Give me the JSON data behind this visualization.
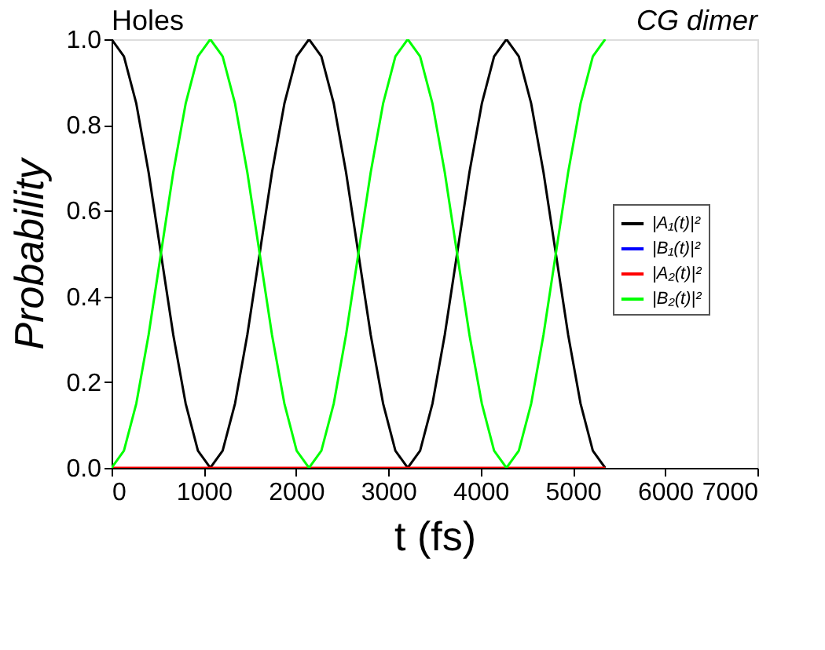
{
  "chart_data": {
    "type": "line",
    "xlabel": "t (fs)",
    "ylabel": "Probability",
    "annotations": [
      "Holes",
      "CG dimer"
    ],
    "x": [
      0,
      134,
      268,
      401,
      535,
      669,
      803,
      936,
      1070,
      1204,
      1338,
      1471,
      1605,
      1739,
      1873,
      2006,
      2140,
      2274,
      2408,
      2541,
      2675,
      2809,
      2943,
      3076,
      3210,
      3344,
      3478,
      3611,
      3745,
      3879,
      4013,
      4146,
      4280,
      4414,
      4548,
      4681,
      4815,
      4949,
      5083,
      5216,
      5350
    ],
    "series": [
      {
        "name": "|A₁(t)|²",
        "color": "#000000",
        "values": [
          1,
          0.96,
          0.85,
          0.69,
          0.5,
          0.31,
          0.15,
          0.04,
          0,
          0.04,
          0.15,
          0.31,
          0.5,
          0.69,
          0.85,
          0.96,
          1,
          0.96,
          0.85,
          0.69,
          0.5,
          0.31,
          0.15,
          0.04,
          0,
          0.04,
          0.15,
          0.31,
          0.5,
          0.69,
          0.85,
          0.96,
          1,
          0.96,
          0.85,
          0.69,
          0.5,
          0.31,
          0.15,
          0.04,
          0
        ]
      },
      {
        "name": "|B₁(t)|²",
        "color": "#0000ff",
        "values": [
          null,
          null,
          null,
          null,
          null,
          null,
          null,
          null,
          null,
          null,
          null,
          null,
          null,
          null,
          null,
          null,
          null,
          null,
          null,
          null,
          null,
          null,
          null,
          null,
          null,
          null,
          null,
          null,
          null,
          null,
          null,
          null,
          null,
          null,
          null,
          null,
          null,
          null,
          null,
          null,
          null
        ]
      },
      {
        "name": "|A₂(t)|²",
        "color": "#ff0000",
        "values": [
          0,
          0,
          0,
          0,
          0,
          0,
          0,
          0,
          0,
          0,
          0,
          0,
          0,
          0,
          0,
          0,
          0,
          0,
          0,
          0,
          0,
          0,
          0,
          0,
          0,
          0,
          0,
          0,
          0,
          0,
          0,
          0,
          0,
          0,
          0,
          0,
          0,
          0,
          0,
          0,
          0
        ]
      },
      {
        "name": "|B₂(t)|²",
        "color": "#00ff00",
        "values": [
          0,
          0.04,
          0.15,
          0.31,
          0.5,
          0.69,
          0.85,
          0.96,
          1,
          0.96,
          0.85,
          0.69,
          0.5,
          0.31,
          0.15,
          0.04,
          0,
          0.04,
          0.15,
          0.31,
          0.5,
          0.69,
          0.85,
          0.96,
          1,
          0.96,
          0.85,
          0.69,
          0.5,
          0.31,
          0.15,
          0.04,
          0,
          0.04,
          0.15,
          0.31,
          0.5,
          0.69,
          0.85,
          0.96,
          1
        ]
      }
    ],
    "xlim": [
      0,
      7000
    ],
    "xticks": [
      0,
      1000,
      2000,
      3000,
      4000,
      5000,
      6000,
      7000
    ],
    "ylim": [
      0,
      1.0
    ],
    "yticks": [
      {
        "value": 0,
        "label": "0.0"
      },
      {
        "value": 0.2,
        "label": "0.2"
      },
      {
        "value": 0.4,
        "label": "0.4"
      },
      {
        "value": 0.6,
        "label": "0.6"
      },
      {
        "value": 0.8,
        "label": "0.8"
      },
      {
        "value": 1.0,
        "label": "1.0"
      }
    ],
    "grid": false,
    "legend": "right",
    "marker": "none",
    "line_style": "solid"
  }
}
